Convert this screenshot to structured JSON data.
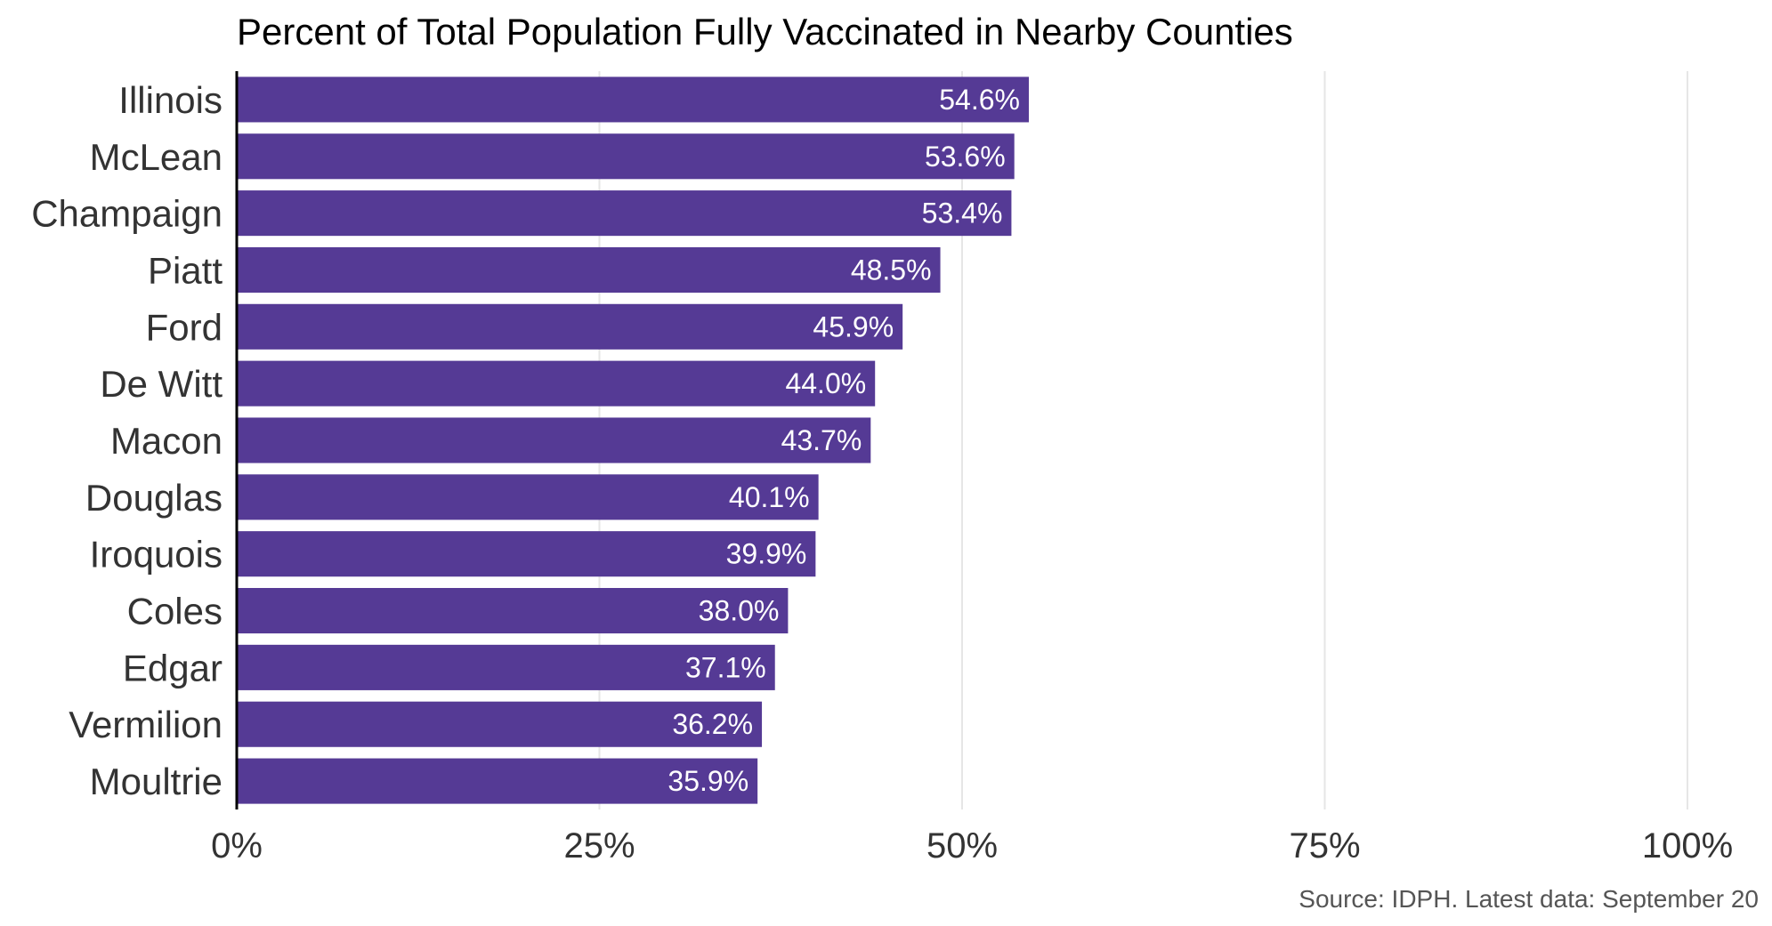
{
  "chart_data": {
    "type": "bar",
    "orientation": "horizontal",
    "title": "Percent of Total Population Fully Vaccinated in Nearby Counties",
    "caption": "Source: IDPH. Latest data: September 20",
    "categories": [
      "Illinois",
      "McLean",
      "Champaign",
      "Piatt",
      "Ford",
      "De Witt",
      "Macon",
      "Douglas",
      "Iroquois",
      "Coles",
      "Edgar",
      "Vermilion",
      "Moultrie"
    ],
    "values": [
      54.6,
      53.6,
      53.4,
      48.5,
      45.9,
      44.0,
      43.7,
      40.1,
      39.9,
      38.0,
      37.1,
      36.2,
      35.9
    ],
    "value_labels": [
      "54.6%",
      "53.6%",
      "53.4%",
      "48.5%",
      "45.9%",
      "44.0%",
      "43.7%",
      "40.1%",
      "39.9%",
      "38.0%",
      "37.1%",
      "36.2%",
      "35.9%"
    ],
    "xlim": [
      0,
      100
    ],
    "x_ticks": [
      0,
      25,
      50,
      75,
      100
    ],
    "x_tick_labels": [
      "0%",
      "25%",
      "50%",
      "75%",
      "100%"
    ],
    "xlabel": "",
    "ylabel": "",
    "grid": "vertical-major",
    "bar_color": "#553a95"
  }
}
